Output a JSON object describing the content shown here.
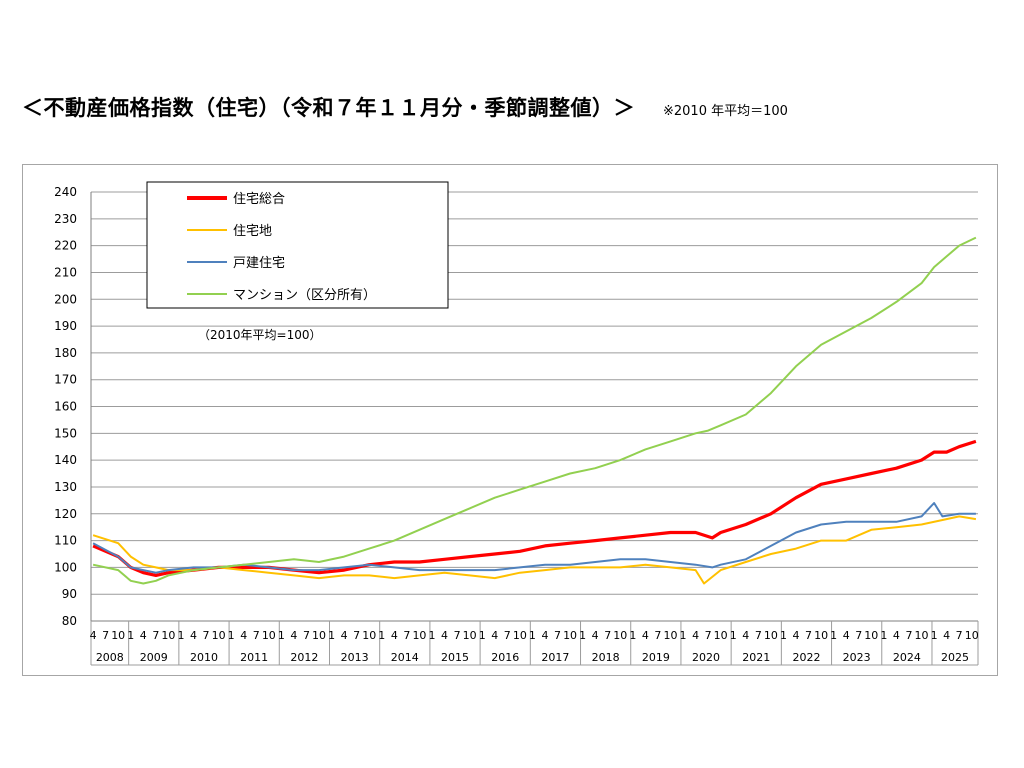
{
  "page": {
    "title": "＜不動産価格指数（住宅）（令和７年１１月分・季節調整値）＞",
    "note": "※2010 年平均＝100"
  },
  "chart_data": {
    "type": "line",
    "title": "",
    "ylim": [
      80,
      240
    ],
    "ytick_labels": [
      "80",
      "90",
      "100",
      "110",
      "120",
      "130",
      "140",
      "150",
      "160",
      "170",
      "180",
      "190",
      "200",
      "210",
      "220",
      "230",
      "240"
    ],
    "grid": true,
    "legend_placement": "top-left",
    "base_note": "（2010年平均=100）",
    "x_start": "2008-04",
    "x_end": "2025-11",
    "month_labels": [
      "4",
      "7",
      "10"
    ],
    "year_labels": [
      "2008",
      "2009",
      "2010",
      "2011",
      "2012",
      "2013",
      "2014",
      "2015",
      "2016",
      "2017",
      "2018",
      "2019",
      "2020",
      "2021",
      "2022",
      "2023",
      "2024",
      "2025"
    ],
    "series": [
      {
        "name": "住宅総合",
        "color": "#ff0000",
        "points": [
          [
            "2008-04",
            108
          ],
          [
            "2008-10",
            104
          ],
          [
            "2009-01",
            100
          ],
          [
            "2009-04",
            98
          ],
          [
            "2009-07",
            97
          ],
          [
            "2009-10",
            98
          ],
          [
            "2010-04",
            99
          ],
          [
            "2010-10",
            100
          ],
          [
            "2011-04",
            100
          ],
          [
            "2011-10",
            100
          ],
          [
            "2012-04",
            99
          ],
          [
            "2012-10",
            98
          ],
          [
            "2013-04",
            99
          ],
          [
            "2013-10",
            101
          ],
          [
            "2014-04",
            102
          ],
          [
            "2014-10",
            102
          ],
          [
            "2015-04",
            103
          ],
          [
            "2015-10",
            104
          ],
          [
            "2016-04",
            105
          ],
          [
            "2016-10",
            106
          ],
          [
            "2017-04",
            108
          ],
          [
            "2017-10",
            109
          ],
          [
            "2018-04",
            110
          ],
          [
            "2018-10",
            111
          ],
          [
            "2019-04",
            112
          ],
          [
            "2019-10",
            113
          ],
          [
            "2020-04",
            113
          ],
          [
            "2020-08",
            111
          ],
          [
            "2020-10",
            113
          ],
          [
            "2021-04",
            116
          ],
          [
            "2021-10",
            120
          ],
          [
            "2022-04",
            126
          ],
          [
            "2022-10",
            131
          ],
          [
            "2023-04",
            133
          ],
          [
            "2023-10",
            135
          ],
          [
            "2024-04",
            137
          ],
          [
            "2024-10",
            140
          ],
          [
            "2025-01",
            143
          ],
          [
            "2025-04",
            143
          ],
          [
            "2025-07",
            145
          ],
          [
            "2025-11",
            147
          ]
        ]
      },
      {
        "name": "住宅地",
        "color": "#ffc000",
        "points": [
          [
            "2008-04",
            112
          ],
          [
            "2008-10",
            109
          ],
          [
            "2009-01",
            104
          ],
          [
            "2009-04",
            101
          ],
          [
            "2009-07",
            100
          ],
          [
            "2009-10",
            99
          ],
          [
            "2010-04",
            99
          ],
          [
            "2010-10",
            100
          ],
          [
            "2011-04",
            99
          ],
          [
            "2011-10",
            98
          ],
          [
            "2012-04",
            97
          ],
          [
            "2012-10",
            96
          ],
          [
            "2013-04",
            97
          ],
          [
            "2013-10",
            97
          ],
          [
            "2014-04",
            96
          ],
          [
            "2014-10",
            97
          ],
          [
            "2015-04",
            98
          ],
          [
            "2015-10",
            97
          ],
          [
            "2016-04",
            96
          ],
          [
            "2016-10",
            98
          ],
          [
            "2017-04",
            99
          ],
          [
            "2017-10",
            100
          ],
          [
            "2018-04",
            100
          ],
          [
            "2018-10",
            100
          ],
          [
            "2019-04",
            101
          ],
          [
            "2019-10",
            100
          ],
          [
            "2020-04",
            99
          ],
          [
            "2020-06",
            94
          ],
          [
            "2020-10",
            99
          ],
          [
            "2021-04",
            102
          ],
          [
            "2021-10",
            105
          ],
          [
            "2022-04",
            107
          ],
          [
            "2022-10",
            110
          ],
          [
            "2023-04",
            110
          ],
          [
            "2023-10",
            114
          ],
          [
            "2024-04",
            115
          ],
          [
            "2024-10",
            116
          ],
          [
            "2025-04",
            118
          ],
          [
            "2025-07",
            119
          ],
          [
            "2025-11",
            118
          ]
        ]
      },
      {
        "name": "戸建住宅",
        "color": "#4f81bd",
        "points": [
          [
            "2008-04",
            109
          ],
          [
            "2008-10",
            104
          ],
          [
            "2009-01",
            100
          ],
          [
            "2009-04",
            99
          ],
          [
            "2009-07",
            98
          ],
          [
            "2009-10",
            99
          ],
          [
            "2010-04",
            100
          ],
          [
            "2010-10",
            100
          ],
          [
            "2011-04",
            101
          ],
          [
            "2011-10",
            100
          ],
          [
            "2012-04",
            99
          ],
          [
            "2012-10",
            99
          ],
          [
            "2013-04",
            100
          ],
          [
            "2013-10",
            101
          ],
          [
            "2014-04",
            100
          ],
          [
            "2014-10",
            99
          ],
          [
            "2015-04",
            99
          ],
          [
            "2015-10",
            99
          ],
          [
            "2016-04",
            99
          ],
          [
            "2016-10",
            100
          ],
          [
            "2017-04",
            101
          ],
          [
            "2017-10",
            101
          ],
          [
            "2018-04",
            102
          ],
          [
            "2018-10",
            103
          ],
          [
            "2019-04",
            103
          ],
          [
            "2019-10",
            102
          ],
          [
            "2020-04",
            101
          ],
          [
            "2020-08",
            100
          ],
          [
            "2020-10",
            101
          ],
          [
            "2021-04",
            103
          ],
          [
            "2021-10",
            108
          ],
          [
            "2022-04",
            113
          ],
          [
            "2022-10",
            116
          ],
          [
            "2023-04",
            117
          ],
          [
            "2023-10",
            117
          ],
          [
            "2024-04",
            117
          ],
          [
            "2024-10",
            119
          ],
          [
            "2025-01",
            124
          ],
          [
            "2025-03",
            119
          ],
          [
            "2025-07",
            120
          ],
          [
            "2025-11",
            120
          ]
        ]
      },
      {
        "name": "マンション（区分所有）",
        "color": "#92d050",
        "points": [
          [
            "2008-04",
            101
          ],
          [
            "2008-10",
            99
          ],
          [
            "2009-01",
            95
          ],
          [
            "2009-04",
            94
          ],
          [
            "2009-07",
            95
          ],
          [
            "2009-10",
            97
          ],
          [
            "2010-04",
            99
          ],
          [
            "2010-10",
            100
          ],
          [
            "2011-04",
            101
          ],
          [
            "2011-10",
            102
          ],
          [
            "2012-04",
            103
          ],
          [
            "2012-10",
            102
          ],
          [
            "2013-04",
            104
          ],
          [
            "2013-10",
            107
          ],
          [
            "2014-04",
            110
          ],
          [
            "2014-10",
            114
          ],
          [
            "2015-04",
            118
          ],
          [
            "2015-10",
            122
          ],
          [
            "2016-04",
            126
          ],
          [
            "2016-10",
            129
          ],
          [
            "2017-04",
            132
          ],
          [
            "2017-10",
            135
          ],
          [
            "2018-04",
            137
          ],
          [
            "2018-10",
            140
          ],
          [
            "2019-04",
            144
          ],
          [
            "2019-10",
            147
          ],
          [
            "2020-04",
            150
          ],
          [
            "2020-07",
            151
          ],
          [
            "2020-10",
            153
          ],
          [
            "2021-04",
            157
          ],
          [
            "2021-10",
            165
          ],
          [
            "2022-04",
            175
          ],
          [
            "2022-10",
            183
          ],
          [
            "2023-04",
            188
          ],
          [
            "2023-10",
            193
          ],
          [
            "2024-04",
            199
          ],
          [
            "2024-10",
            206
          ],
          [
            "2025-01",
            212
          ],
          [
            "2025-04",
            216
          ],
          [
            "2025-07",
            220
          ],
          [
            "2025-11",
            223
          ]
        ]
      }
    ]
  }
}
